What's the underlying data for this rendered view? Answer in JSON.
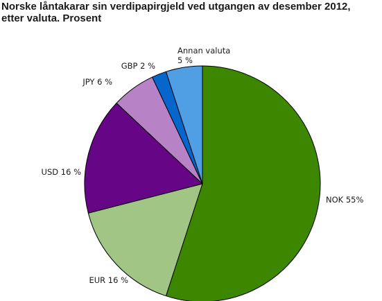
{
  "chart_data": {
    "type": "pie",
    "title_lines": [
      "Norske låntakarar sin verdipapirgjeld ved utgangen av desember 2012,",
      "etter valuta. Prosent"
    ],
    "slices": [
      {
        "label": "NOK",
        "value": 55,
        "color": "#3d8700",
        "label_lines": [
          "NOK 55%"
        ]
      },
      {
        "label": "EUR",
        "value": 16,
        "color": "#a0c585",
        "label_lines": [
          "EUR 16 %"
        ]
      },
      {
        "label": "USD",
        "value": 16,
        "color": "#660586",
        "label_lines": [
          "USD 16 %"
        ]
      },
      {
        "label": "JPY",
        "value": 6,
        "color": "#b882c6",
        "label_lines": [
          "JPY 6 %"
        ]
      },
      {
        "label": "GBP",
        "value": 2,
        "color": "#0766cc",
        "label_lines": [
          "GBP 2 %"
        ]
      },
      {
        "label": "Annan valuta",
        "value": 5,
        "color": "#509ee3",
        "label_lines": [
          "Annan valuta",
          "5 %"
        ]
      }
    ],
    "start_angle": "12 o'clock",
    "direction": "clockwise",
    "legend": "none"
  }
}
